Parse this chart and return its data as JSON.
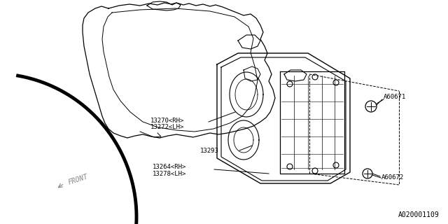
{
  "bg_color": "#ffffff",
  "line_color": "#000000",
  "gray_color": "#888888",
  "labels": {
    "part1": "13270<RH>",
    "part2": "13272<LH>",
    "part3": "13293",
    "part4": "13264<RH>",
    "part5": "13278<LH>",
    "part6": "A60671",
    "part7": "A60672",
    "diagram_id": "A020001109",
    "front": "FRONT"
  },
  "font_size_small": 6.5,
  "font_size_id": 7
}
